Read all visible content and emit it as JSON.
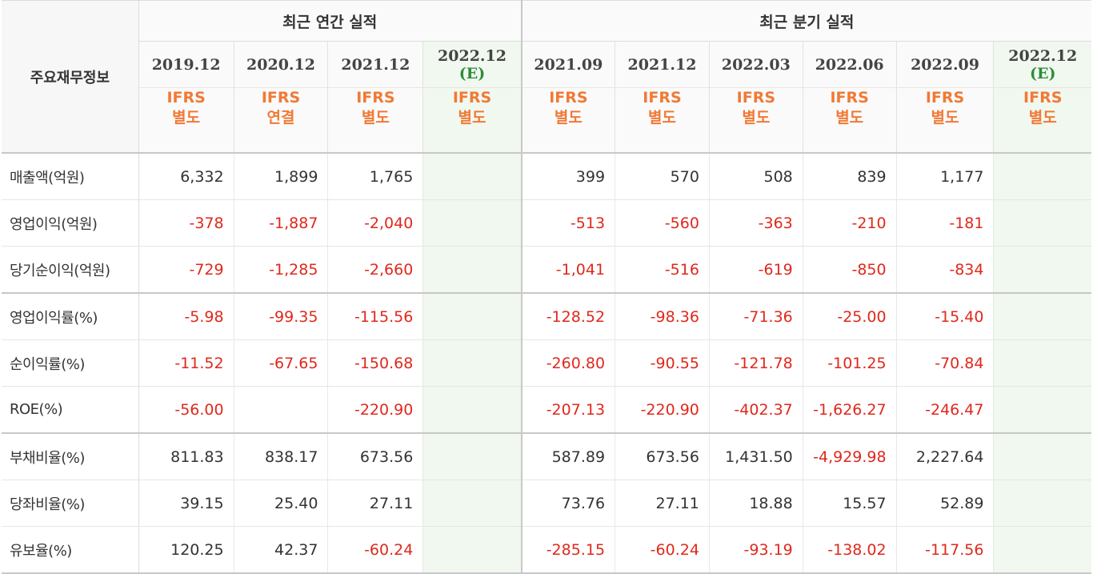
{
  "header": {
    "corner_label": "주요재무정보",
    "annual_title": "최근 연간 실적",
    "quarter_title": "최근 분기 실적"
  },
  "periods": [
    {
      "label": "2019.12",
      "estimate": "",
      "ifrs_top": "IFRS",
      "ifrs_bottom": "별도"
    },
    {
      "label": "2020.12",
      "estimate": "",
      "ifrs_top": "IFRS",
      "ifrs_bottom": "연결"
    },
    {
      "label": "2021.12",
      "estimate": "",
      "ifrs_top": "IFRS",
      "ifrs_bottom": "별도"
    },
    {
      "label": "2022.12",
      "estimate": "(E)",
      "ifrs_top": "IFRS",
      "ifrs_bottom": "별도"
    },
    {
      "label": "2021.09",
      "estimate": "",
      "ifrs_top": "IFRS",
      "ifrs_bottom": "별도"
    },
    {
      "label": "2021.12",
      "estimate": "",
      "ifrs_top": "IFRS",
      "ifrs_bottom": "별도"
    },
    {
      "label": "2022.03",
      "estimate": "",
      "ifrs_top": "IFRS",
      "ifrs_bottom": "별도"
    },
    {
      "label": "2022.06",
      "estimate": "",
      "ifrs_top": "IFRS",
      "ifrs_bottom": "별도"
    },
    {
      "label": "2022.09",
      "estimate": "",
      "ifrs_top": "IFRS",
      "ifrs_bottom": "별도"
    },
    {
      "label": "2022.12",
      "estimate": "(E)",
      "ifrs_top": "IFRS",
      "ifrs_bottom": "별도"
    }
  ],
  "rows": [
    {
      "label": "매출액(억원)",
      "values": [
        "6,332",
        "1,899",
        "1,765",
        "",
        "399",
        "570",
        "508",
        "839",
        "1,177",
        ""
      ]
    },
    {
      "label": "영업이익(억원)",
      "values": [
        "-378",
        "-1,887",
        "-2,040",
        "",
        "-513",
        "-560",
        "-363",
        "-210",
        "-181",
        ""
      ]
    },
    {
      "label": "당기순이익(억원)",
      "values": [
        "-729",
        "-1,285",
        "-2,660",
        "",
        "-1,041",
        "-516",
        "-619",
        "-850",
        "-834",
        ""
      ]
    },
    {
      "label": "영업이익률(%)",
      "values": [
        "-5.98",
        "-99.35",
        "-115.56",
        "",
        "-128.52",
        "-98.36",
        "-71.36",
        "-25.00",
        "-15.40",
        ""
      ]
    },
    {
      "label": "순이익률(%)",
      "values": [
        "-11.52",
        "-67.65",
        "-150.68",
        "",
        "-260.80",
        "-90.55",
        "-121.78",
        "-101.25",
        "-70.84",
        ""
      ]
    },
    {
      "label": "ROE(%)",
      "values": [
        "-56.00",
        "",
        "-220.90",
        "",
        "-207.13",
        "-220.90",
        "-402.37",
        "-1,626.27",
        "-246.47",
        ""
      ]
    },
    {
      "label": "부채비율(%)",
      "values": [
        "811.83",
        "838.17",
        "673.56",
        "",
        "587.89",
        "673.56",
        "1,431.50",
        "-4,929.98",
        "2,227.64",
        ""
      ]
    },
    {
      "label": "당좌비율(%)",
      "values": [
        "39.15",
        "25.40",
        "27.11",
        "",
        "73.76",
        "27.11",
        "18.88",
        "15.57",
        "52.89",
        ""
      ]
    },
    {
      "label": "유보율(%)",
      "values": [
        "120.25",
        "42.37",
        "-60.24",
        "",
        "-285.15",
        "-60.24",
        "-93.19",
        "-138.02",
        "-117.56",
        ""
      ]
    }
  ],
  "colors": {
    "negative": "#e0281c",
    "ifrs": "#f07a36",
    "estimate_text": "#2e8b3a",
    "estimate_bg": "#f1f8ef"
  }
}
